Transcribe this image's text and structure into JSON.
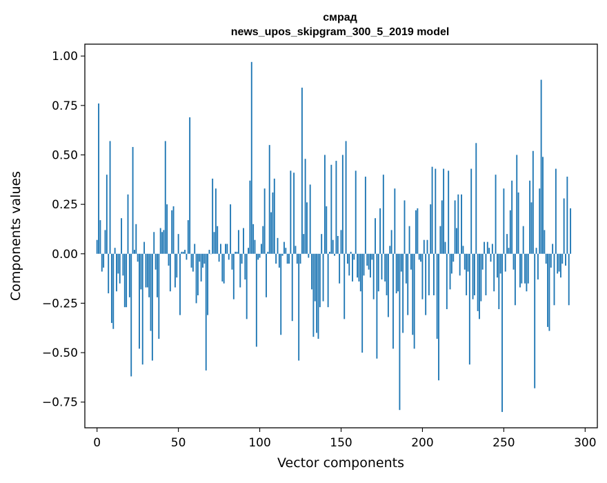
{
  "chart_data": {
    "type": "bar",
    "title_line1": "смрад",
    "title_line2": "news_upos_skipgram_300_5_2019 model",
    "xlabel": "Vector components",
    "ylabel": "Components values",
    "xlim": [
      -7.5,
      307.5
    ],
    "ylim": [
      -0.88,
      1.06
    ],
    "xticks": [
      0,
      50,
      100,
      150,
      200,
      250,
      300
    ],
    "yticks": [
      1.0,
      0.75,
      0.5,
      0.25,
      0.0,
      -0.25,
      -0.5,
      -0.75
    ],
    "ytick_labels": [
      "1.00",
      "0.75",
      "0.50",
      "0.25",
      "0.00",
      "−0.25",
      "−0.50",
      "−0.75"
    ],
    "bar_color": "#1f77b4",
    "values": [
      0.07,
      0.76,
      0.17,
      -0.09,
      -0.07,
      0.12,
      0.4,
      -0.2,
      0.57,
      -0.35,
      -0.38,
      0.03,
      -0.19,
      -0.1,
      -0.15,
      0.18,
      -0.11,
      -0.27,
      -0.27,
      0.3,
      -0.22,
      -0.62,
      0.54,
      0.02,
      0.15,
      -0.04,
      -0.48,
      -0.18,
      -0.56,
      0.06,
      -0.17,
      -0.17,
      -0.22,
      -0.39,
      -0.54,
      0.11,
      -0.08,
      -0.22,
      -0.43,
      0.13,
      0.11,
      0.12,
      0.57,
      0.25,
      -0.06,
      -0.19,
      0.22,
      0.24,
      -0.17,
      -0.12,
      0.1,
      -0.31,
      0.01,
      0.01,
      0.02,
      -0.03,
      0.17,
      0.69,
      -0.07,
      -0.09,
      0.05,
      -0.25,
      -0.21,
      -0.04,
      -0.14,
      -0.07,
      -0.05,
      -0.59,
      -0.31,
      0.02,
      0.0,
      0.38,
      0.11,
      0.33,
      0.14,
      -0.04,
      0.05,
      -0.14,
      -0.15,
      0.05,
      0.05,
      -0.03,
      0.25,
      -0.08,
      -0.23,
      0.01,
      0.01,
      0.12,
      -0.17,
      -0.05,
      0.13,
      -0.13,
      -0.33,
      0.03,
      0.37,
      0.97,
      0.15,
      0.07,
      -0.47,
      -0.03,
      -0.02,
      0.05,
      0.14,
      0.33,
      -0.22,
      0.01,
      0.55,
      0.21,
      0.31,
      0.38,
      -0.05,
      0.08,
      -0.07,
      -0.41,
      -0.01,
      0.06,
      0.03,
      -0.05,
      -0.05,
      0.42,
      -0.34,
      0.41,
      0.04,
      -0.05,
      -0.54,
      -0.05,
      0.84,
      0.1,
      0.48,
      0.26,
      -0.02,
      0.35,
      -0.18,
      -0.42,
      -0.24,
      -0.4,
      -0.43,
      -0.27,
      0.1,
      -0.24,
      0.5,
      0.24,
      -0.27,
      0.01,
      0.45,
      0.07,
      -0.01,
      0.47,
      0.09,
      -0.15,
      0.12,
      0.5,
      -0.33,
      0.57,
      -0.05,
      -0.11,
      0.01,
      -0.14,
      -0.03,
      0.42,
      -0.12,
      -0.14,
      -0.19,
      -0.5,
      -0.11,
      0.39,
      -0.06,
      -0.08,
      -0.12,
      -0.03,
      -0.23,
      0.18,
      -0.53,
      -0.19,
      0.23,
      -0.13,
      0.4,
      -0.14,
      -0.21,
      -0.32,
      0.04,
      0.12,
      -0.48,
      0.33,
      -0.2,
      -0.19,
      -0.79,
      -0.09,
      -0.4,
      0.27,
      -0.15,
      -0.31,
      0.14,
      -0.08,
      -0.41,
      -0.48,
      0.22,
      0.23,
      -0.03,
      -0.04,
      -0.23,
      0.07,
      -0.31,
      0.07,
      -0.21,
      0.25,
      0.44,
      -0.21,
      0.43,
      -0.43,
      -0.64,
      0.14,
      0.27,
      0.43,
      0.06,
      -0.28,
      0.42,
      -0.18,
      -0.1,
      -0.04,
      0.27,
      0.13,
      0.3,
      -0.11,
      0.3,
      0.04,
      -0.08,
      -0.21,
      -0.09,
      -0.56,
      0.43,
      -0.23,
      -0.21,
      0.56,
      -0.29,
      -0.33,
      -0.24,
      -0.08,
      0.06,
      -0.21,
      0.06,
      0.03,
      -0.04,
      0.05,
      -0.19,
      0.4,
      -0.12,
      -0.28,
      -0.1,
      -0.8,
      0.33,
      -0.09,
      0.1,
      0.03,
      0.22,
      0.37,
      -0.08,
      -0.26,
      0.5,
      0.31,
      -0.17,
      -0.15,
      0.14,
      -0.15,
      -0.19,
      -0.15,
      0.37,
      0.26,
      0.52,
      -0.68,
      0.03,
      -0.13,
      0.33,
      0.88,
      0.49,
      0.12,
      -0.05,
      -0.37,
      -0.39,
      -0.07,
      0.05,
      -0.26,
      0.43,
      -0.1,
      -0.09,
      -0.12,
      -0.05,
      0.28,
      -0.06,
      0.39,
      -0.26,
      0.23
    ]
  }
}
